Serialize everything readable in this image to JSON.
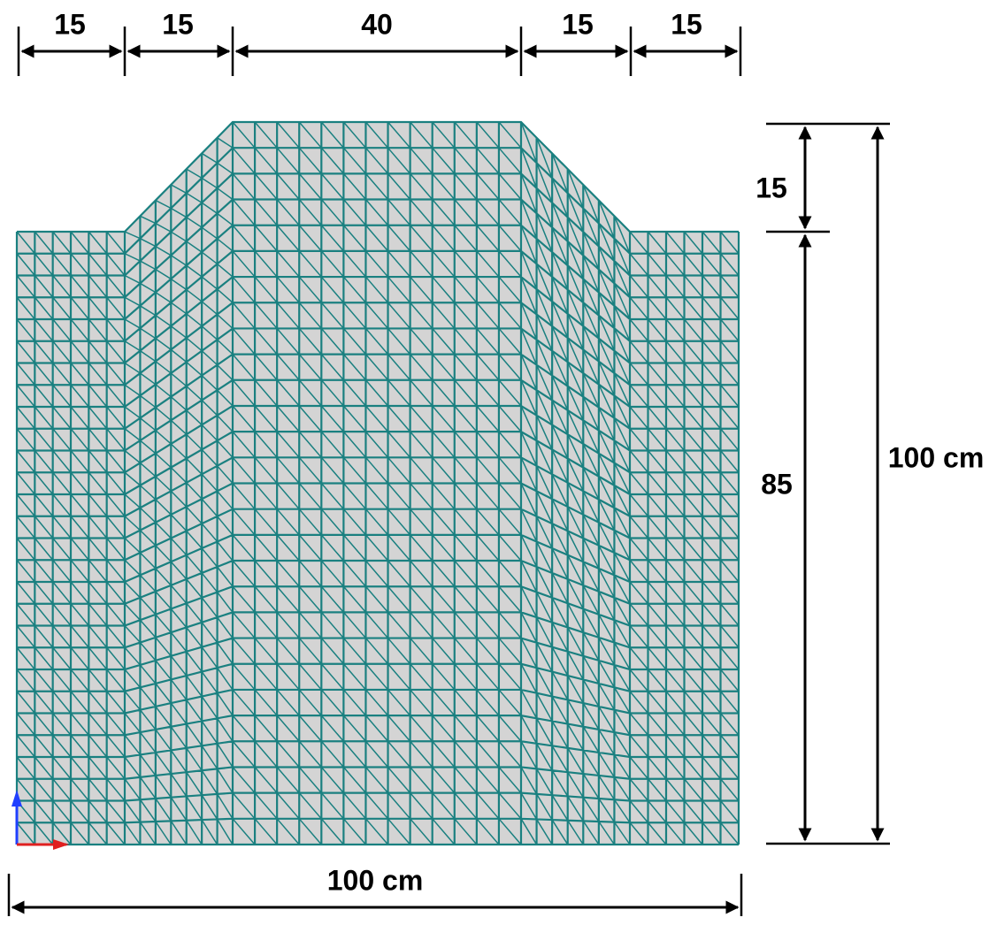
{
  "top_dimensions": [
    "15",
    "15",
    "40",
    "15",
    "15"
  ],
  "right_dimensions": {
    "upper": "15",
    "lower": "85",
    "total": "100 cm"
  },
  "bottom_dimension": "100 cm"
}
